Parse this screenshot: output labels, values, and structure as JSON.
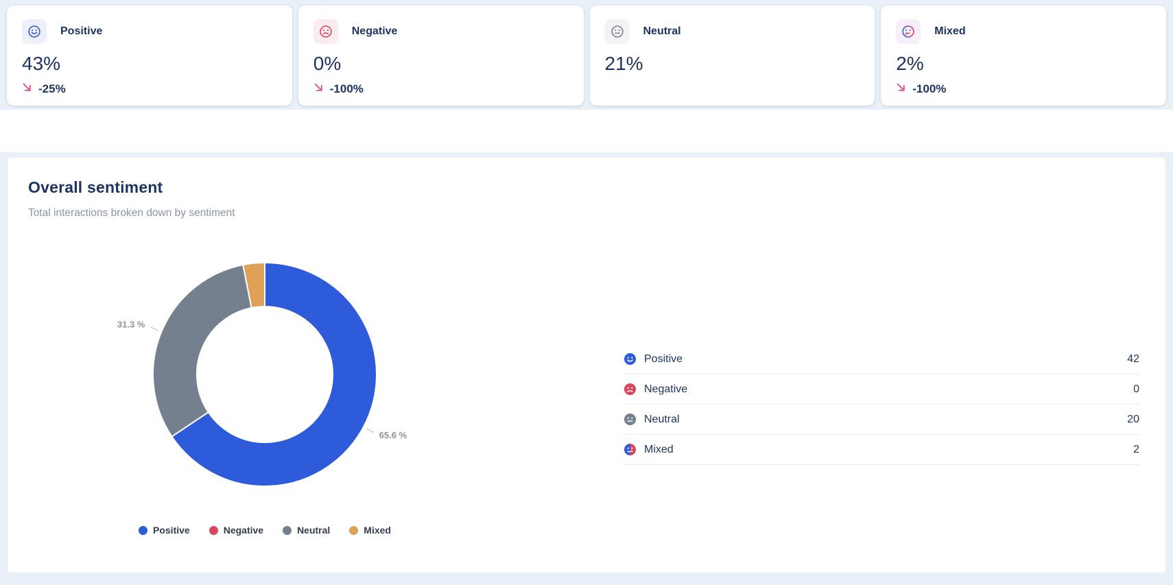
{
  "colors": {
    "positive": "#2d5bd9",
    "negative": "#d9465b",
    "neutral": "#75808f",
    "mixed": "#dfa057",
    "navy": "#1d3361",
    "subtitle-gray": "#8b94a5",
    "label-gray": "#8d939b",
    "pink": "#e0518d",
    "positive-bg": "#edf0fb",
    "negative-bg": "#fbebee",
    "neutral-bg": "#f3f3f5",
    "mixed-bg": "#f7eef9",
    "page-bg": "#e9f0f8",
    "divider": "#e8edf4"
  },
  "stat_cards": [
    {
      "label": "Positive",
      "value": "43%",
      "delta": "-25%"
    },
    {
      "label": "Negative",
      "value": "0%",
      "delta": "-100%"
    },
    {
      "label": "Neutral",
      "value": "21%",
      "delta": ""
    },
    {
      "label": "Mixed",
      "value": "2%",
      "delta": "-100%"
    }
  ],
  "panel": {
    "title": "Overall sentiment",
    "subtitle": "Total interactions broken down by sentiment"
  },
  "chart_data": {
    "type": "pie",
    "donut": true,
    "inner_radius_ratio": 0.61,
    "title": "Overall sentiment",
    "subtitle": "Total interactions broken down by sentiment",
    "categories": [
      "Positive",
      "Negative",
      "Neutral",
      "Mixed"
    ],
    "values": [
      42,
      0,
      20,
      2
    ],
    "percentages": [
      65.6,
      0,
      31.3,
      3.1
    ],
    "slice_labels": [
      "65.6 %",
      "",
      "31.3 %",
      ""
    ],
    "colors": [
      "#2d5bd9",
      "#d9465b",
      "#75808f",
      "#dfa057"
    ],
    "legend_position": "bottom",
    "legend": [
      "Positive",
      "Negative",
      "Neutral",
      "Mixed"
    ]
  },
  "breakdown": [
    {
      "label": "Positive",
      "value": "42"
    },
    {
      "label": "Negative",
      "value": "0"
    },
    {
      "label": "Neutral",
      "value": "20"
    },
    {
      "label": "Mixed",
      "value": "2"
    }
  ]
}
